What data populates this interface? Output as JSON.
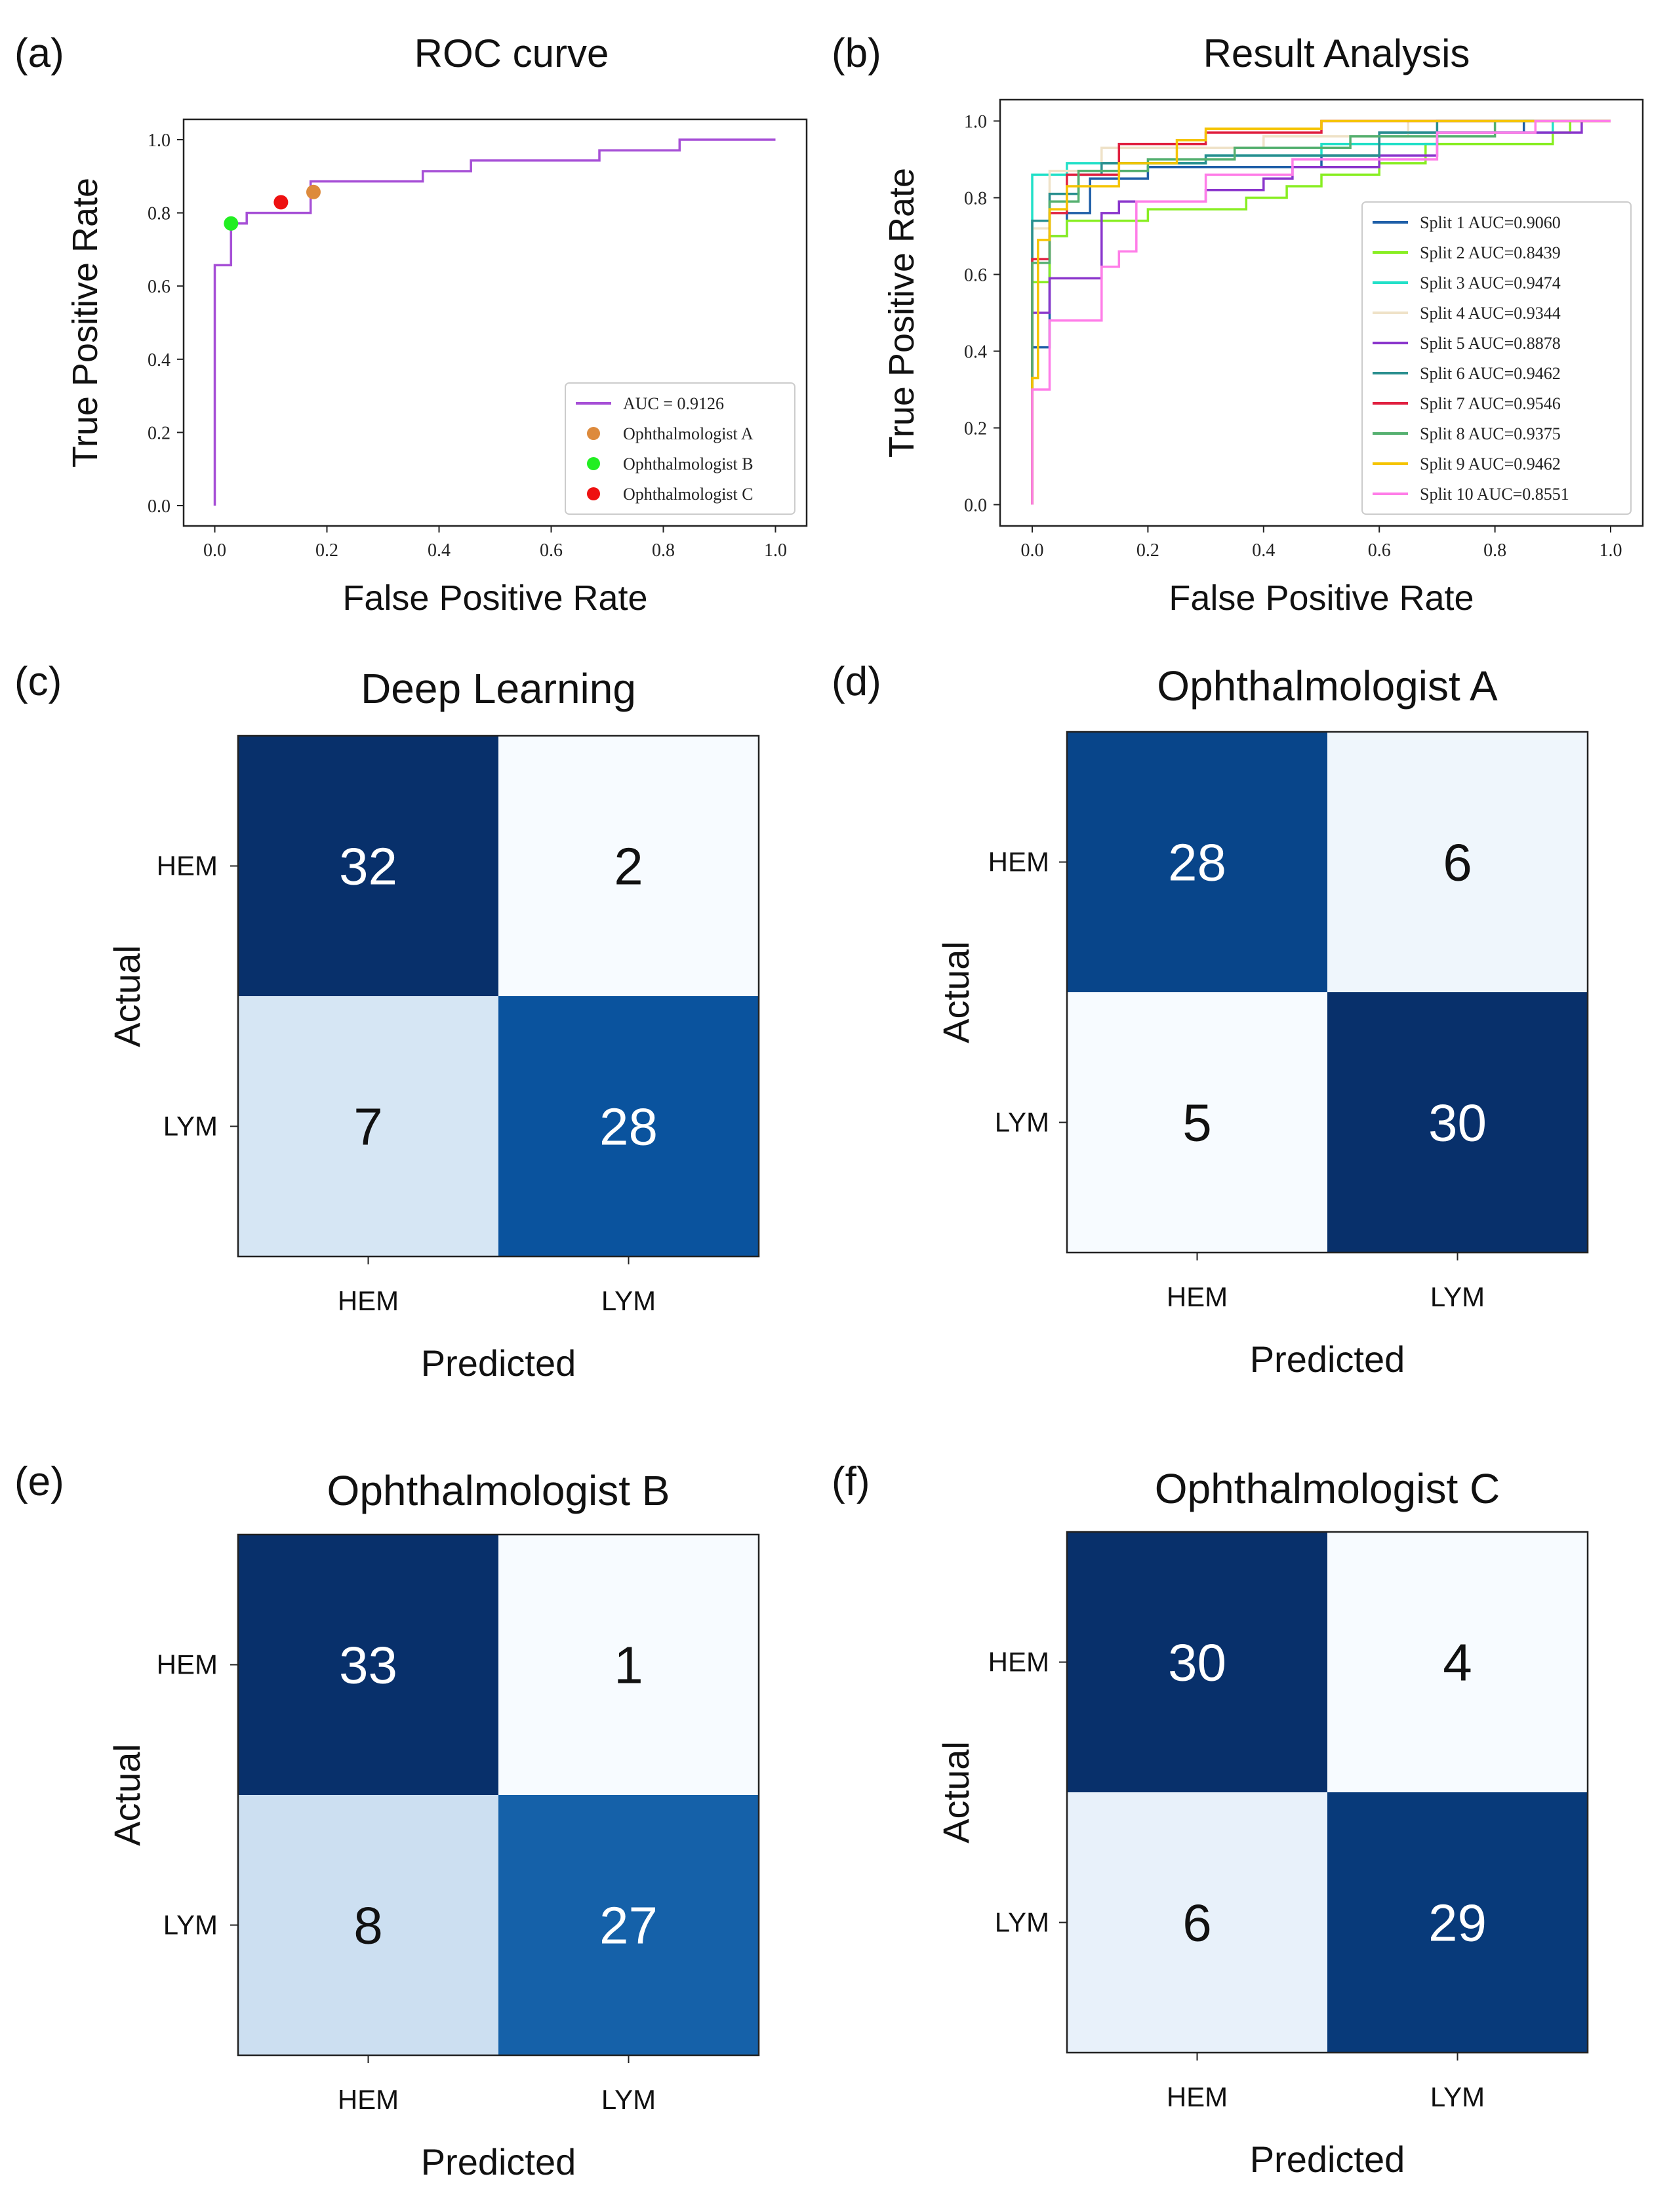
{
  "chart_data": [
    {
      "panel": "(a)",
      "type": "line",
      "title": "ROC curve",
      "xlabel": "False Positive Rate",
      "ylabel": "True Positive Rate",
      "xlim": [
        0,
        1
      ],
      "ylim": [
        0,
        1
      ],
      "xticks": [
        "0.0",
        "0.2",
        "0.4",
        "0.6",
        "0.8",
        "1.0"
      ],
      "yticks": [
        "0.0",
        "0.2",
        "0.4",
        "0.6",
        "0.8",
        "1.0"
      ],
      "legend_position": "lower-right",
      "series": [
        {
          "name": "AUC = 0.9126",
          "color": "#a64fd6",
          "points": [
            [
              0,
              0
            ],
            [
              0,
              0.657
            ],
            [
              0.029,
              0.657
            ],
            [
              0.029,
              0.771
            ],
            [
              0.057,
              0.771
            ],
            [
              0.057,
              0.8
            ],
            [
              0.171,
              0.8
            ],
            [
              0.171,
              0.886
            ],
            [
              0.371,
              0.886
            ],
            [
              0.371,
              0.914
            ],
            [
              0.457,
              0.914
            ],
            [
              0.457,
              0.943
            ],
            [
              0.686,
              0.943
            ],
            [
              0.686,
              0.971
            ],
            [
              0.829,
              0.971
            ],
            [
              0.829,
              1.0
            ],
            [
              1.0,
              1.0
            ]
          ]
        }
      ],
      "scatter": [
        {
          "name": "Ophthalmologist A",
          "x": 0.176,
          "y": 0.857,
          "color": "#dd8a3c"
        },
        {
          "name": "Ophthalmologist B",
          "x": 0.029,
          "y": 0.771,
          "color": "#22ee22"
        },
        {
          "name": "Ophthalmologist C",
          "x": 0.118,
          "y": 0.829,
          "color": "#ee1111"
        }
      ]
    },
    {
      "panel": "(b)",
      "type": "line",
      "title": "Result Analysis",
      "xlabel": "False Positive Rate",
      "ylabel": "True Positive Rate",
      "xlim": [
        0,
        1
      ],
      "ylim": [
        0,
        1
      ],
      "xticks": [
        "0.0",
        "0.2",
        "0.4",
        "0.6",
        "0.8",
        "1.0"
      ],
      "yticks": [
        "0.0",
        "0.2",
        "0.4",
        "0.6",
        "0.8",
        "1.0"
      ],
      "legend_position": "lower-right",
      "series": [
        {
          "name": "Split 1  AUC=0.9060",
          "color": "#1f5fa8",
          "points": [
            [
              0,
              0
            ],
            [
              0,
              0.41
            ],
            [
              0.03,
              0.41
            ],
            [
              0.03,
              0.7
            ],
            [
              0.06,
              0.7
            ],
            [
              0.06,
              0.76
            ],
            [
              0.1,
              0.76
            ],
            [
              0.1,
              0.85
            ],
            [
              0.2,
              0.85
            ],
            [
              0.2,
              0.88
            ],
            [
              0.5,
              0.88
            ],
            [
              0.5,
              0.91
            ],
            [
              0.6,
              0.91
            ],
            [
              0.6,
              0.97
            ],
            [
              0.85,
              0.97
            ],
            [
              0.85,
              1.0
            ],
            [
              1,
              1
            ]
          ]
        },
        {
          "name": "Split 2  AUC=0.8439",
          "color": "#88ee22",
          "points": [
            [
              0,
              0
            ],
            [
              0,
              0.58
            ],
            [
              0.03,
              0.58
            ],
            [
              0.03,
              0.7
            ],
            [
              0.06,
              0.7
            ],
            [
              0.06,
              0.74
            ],
            [
              0.2,
              0.74
            ],
            [
              0.2,
              0.77
            ],
            [
              0.37,
              0.77
            ],
            [
              0.37,
              0.8
            ],
            [
              0.44,
              0.8
            ],
            [
              0.44,
              0.83
            ],
            [
              0.5,
              0.83
            ],
            [
              0.5,
              0.86
            ],
            [
              0.6,
              0.86
            ],
            [
              0.6,
              0.89
            ],
            [
              0.68,
              0.89
            ],
            [
              0.68,
              0.94
            ],
            [
              0.9,
              0.94
            ],
            [
              0.9,
              0.97
            ],
            [
              0.93,
              0.97
            ],
            [
              0.93,
              1.0
            ],
            [
              1,
              1
            ]
          ]
        },
        {
          "name": "Split 3  AUC=0.9474",
          "color": "#22e0c8",
          "points": [
            [
              0,
              0
            ],
            [
              0,
              0.86
            ],
            [
              0.06,
              0.86
            ],
            [
              0.06,
              0.89
            ],
            [
              0.3,
              0.89
            ],
            [
              0.3,
              0.91
            ],
            [
              0.5,
              0.91
            ],
            [
              0.5,
              0.94
            ],
            [
              0.7,
              0.94
            ],
            [
              0.7,
              0.97
            ],
            [
              0.9,
              0.97
            ],
            [
              0.9,
              1.0
            ],
            [
              1,
              1
            ]
          ]
        },
        {
          "name": "Split 4  AUC=0.9344",
          "color": "#efe2c8",
          "points": [
            [
              0,
              0
            ],
            [
              0,
              0.72
            ],
            [
              0.03,
              0.72
            ],
            [
              0.03,
              0.87
            ],
            [
              0.12,
              0.87
            ],
            [
              0.12,
              0.93
            ],
            [
              0.4,
              0.93
            ],
            [
              0.4,
              0.96
            ],
            [
              0.65,
              0.96
            ],
            [
              0.65,
              1.0
            ],
            [
              1,
              1
            ]
          ]
        },
        {
          "name": "Split 5  AUC=0.8878",
          "color": "#8a35cc",
          "points": [
            [
              0,
              0
            ],
            [
              0,
              0.5
            ],
            [
              0.03,
              0.5
            ],
            [
              0.03,
              0.59
            ],
            [
              0.12,
              0.59
            ],
            [
              0.12,
              0.76
            ],
            [
              0.15,
              0.76
            ],
            [
              0.15,
              0.79
            ],
            [
              0.3,
              0.79
            ],
            [
              0.3,
              0.82
            ],
            [
              0.4,
              0.82
            ],
            [
              0.4,
              0.85
            ],
            [
              0.45,
              0.85
            ],
            [
              0.45,
              0.88
            ],
            [
              0.6,
              0.88
            ],
            [
              0.6,
              0.91
            ],
            [
              0.7,
              0.91
            ],
            [
              0.7,
              0.97
            ],
            [
              0.95,
              0.97
            ],
            [
              0.95,
              1.0
            ],
            [
              1,
              1
            ]
          ]
        },
        {
          "name": "Split 6  AUC=0.9462",
          "color": "#2a8f8f",
          "points": [
            [
              0,
              0
            ],
            [
              0,
              0.74
            ],
            [
              0.03,
              0.74
            ],
            [
              0.03,
              0.81
            ],
            [
              0.08,
              0.81
            ],
            [
              0.08,
              0.86
            ],
            [
              0.12,
              0.86
            ],
            [
              0.12,
              0.89
            ],
            [
              0.3,
              0.89
            ],
            [
              0.3,
              0.91
            ],
            [
              0.6,
              0.91
            ],
            [
              0.6,
              0.97
            ],
            [
              0.7,
              0.97
            ],
            [
              0.7,
              1.0
            ],
            [
              1,
              1
            ]
          ]
        },
        {
          "name": "Split 7  AUC=0.9546",
          "color": "#e02040",
          "points": [
            [
              0,
              0
            ],
            [
              0,
              0.64
            ],
            [
              0.03,
              0.64
            ],
            [
              0.03,
              0.76
            ],
            [
              0.06,
              0.76
            ],
            [
              0.06,
              0.86
            ],
            [
              0.15,
              0.86
            ],
            [
              0.15,
              0.94
            ],
            [
              0.3,
              0.94
            ],
            [
              0.3,
              0.97
            ],
            [
              0.5,
              0.97
            ],
            [
              0.5,
              1.0
            ],
            [
              1,
              1
            ]
          ]
        },
        {
          "name": "Split 8  AUC=0.9375",
          "color": "#55b070",
          "points": [
            [
              0,
              0
            ],
            [
              0,
              0.63
            ],
            [
              0.03,
              0.63
            ],
            [
              0.03,
              0.79
            ],
            [
              0.08,
              0.79
            ],
            [
              0.08,
              0.87
            ],
            [
              0.2,
              0.87
            ],
            [
              0.2,
              0.9
            ],
            [
              0.35,
              0.9
            ],
            [
              0.35,
              0.93
            ],
            [
              0.55,
              0.93
            ],
            [
              0.55,
              0.96
            ],
            [
              0.8,
              0.96
            ],
            [
              0.8,
              1.0
            ],
            [
              1,
              1
            ]
          ]
        },
        {
          "name": "Split 9  AUC=0.9462",
          "color": "#f5c400",
          "points": [
            [
              0,
              0
            ],
            [
              0,
              0.33
            ],
            [
              0.01,
              0.33
            ],
            [
              0.01,
              0.69
            ],
            [
              0.03,
              0.69
            ],
            [
              0.03,
              0.77
            ],
            [
              0.06,
              0.77
            ],
            [
              0.06,
              0.83
            ],
            [
              0.15,
              0.83
            ],
            [
              0.15,
              0.89
            ],
            [
              0.25,
              0.89
            ],
            [
              0.25,
              0.95
            ],
            [
              0.3,
              0.95
            ],
            [
              0.3,
              0.98
            ],
            [
              0.5,
              0.98
            ],
            [
              0.5,
              1.0
            ],
            [
              1,
              1
            ]
          ]
        },
        {
          "name": "Split 10  AUC=0.8551",
          "color": "#ff7de8",
          "points": [
            [
              0,
              0
            ],
            [
              0,
              0.3
            ],
            [
              0.03,
              0.3
            ],
            [
              0.03,
              0.48
            ],
            [
              0.12,
              0.48
            ],
            [
              0.12,
              0.62
            ],
            [
              0.15,
              0.62
            ],
            [
              0.15,
              0.66
            ],
            [
              0.18,
              0.66
            ],
            [
              0.18,
              0.79
            ],
            [
              0.3,
              0.79
            ],
            [
              0.3,
              0.86
            ],
            [
              0.45,
              0.86
            ],
            [
              0.45,
              0.9
            ],
            [
              0.7,
              0.9
            ],
            [
              0.7,
              0.97
            ],
            [
              0.87,
              0.97
            ],
            [
              0.87,
              1.0
            ],
            [
              1,
              1
            ]
          ]
        }
      ]
    },
    {
      "panel": "(c)",
      "type": "heatmap",
      "title": "Deep Learning",
      "xlabel": "Predicted",
      "ylabel": "Actual",
      "row_labels": [
        "HEM",
        "LYM"
      ],
      "col_labels": [
        "HEM",
        "LYM"
      ],
      "values": [
        [
          32,
          2
        ],
        [
          7,
          28
        ]
      ]
    },
    {
      "panel": "(d)",
      "type": "heatmap",
      "title": "Ophthalmologist A",
      "xlabel": "Predicted",
      "ylabel": "Actual",
      "row_labels": [
        "HEM",
        "LYM"
      ],
      "col_labels": [
        "HEM",
        "LYM"
      ],
      "values": [
        [
          28,
          6
        ],
        [
          5,
          30
        ]
      ]
    },
    {
      "panel": "(e)",
      "type": "heatmap",
      "title": "Ophthalmologist B",
      "xlabel": "Predicted",
      "ylabel": "Actual",
      "row_labels": [
        "HEM",
        "LYM"
      ],
      "col_labels": [
        "HEM",
        "LYM"
      ],
      "values": [
        [
          33,
          1
        ],
        [
          8,
          27
        ]
      ]
    },
    {
      "panel": "(f)",
      "type": "heatmap",
      "title": "Ophthalmologist C",
      "xlabel": "Predicted",
      "ylabel": "Actual",
      "row_labels": [
        "HEM",
        "LYM"
      ],
      "col_labels": [
        "HEM",
        "LYM"
      ],
      "values": [
        [
          30,
          4
        ],
        [
          6,
          29
        ]
      ]
    }
  ]
}
